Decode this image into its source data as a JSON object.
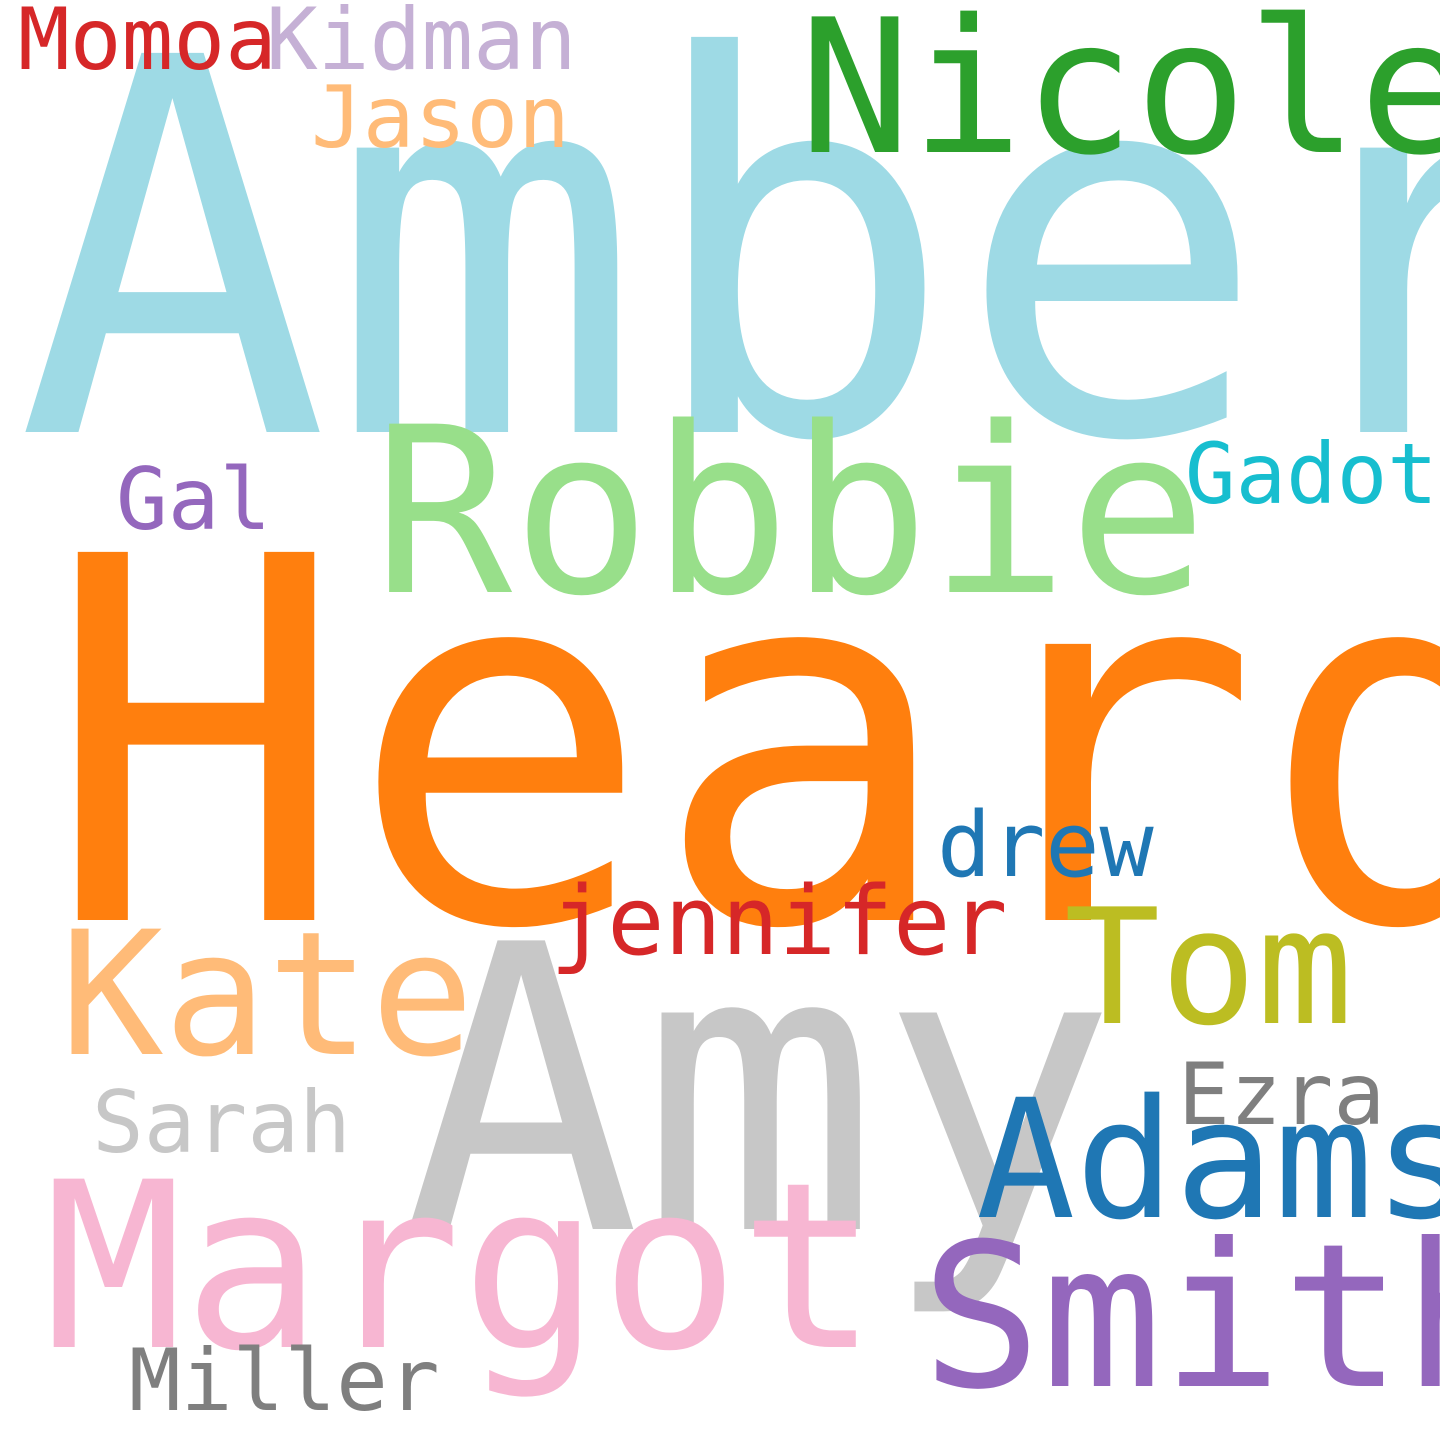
{
  "words": [
    {
      "text": "Amber",
      "color": "#9edae5"
    },
    {
      "text": "Heard",
      "color": "#ff7f0e"
    },
    {
      "text": "Amy",
      "color": "#c7c7c7"
    },
    {
      "text": "Robbie",
      "color": "#98df8a"
    },
    {
      "text": "Nicole",
      "color": "#2ca02c"
    },
    {
      "text": "Margot",
      "color": "#f7b6d2"
    },
    {
      "text": "Smith",
      "color": "#9467bd"
    },
    {
      "text": "Adams",
      "color": "#1f77b4"
    },
    {
      "text": "Kate",
      "color": "#ffbb78"
    },
    {
      "text": "Tom",
      "color": "#bcbd22"
    },
    {
      "text": "jennifer",
      "color": "#d62728"
    },
    {
      "text": "drew",
      "color": "#1f77b4"
    },
    {
      "text": "Gadot",
      "color": "#17becf"
    },
    {
      "text": "Gal",
      "color": "#9467bd"
    },
    {
      "text": "Jason",
      "color": "#ffbb78"
    },
    {
      "text": "Kidman",
      "color": "#c5b0d5"
    },
    {
      "text": "Momoa",
      "color": "#d62728"
    },
    {
      "text": "Sarah",
      "color": "#c7c7c7"
    },
    {
      "text": "Ezra",
      "color": "#7f7f7f"
    },
    {
      "text": "Miller",
      "color": "#7f7f7f"
    }
  ]
}
